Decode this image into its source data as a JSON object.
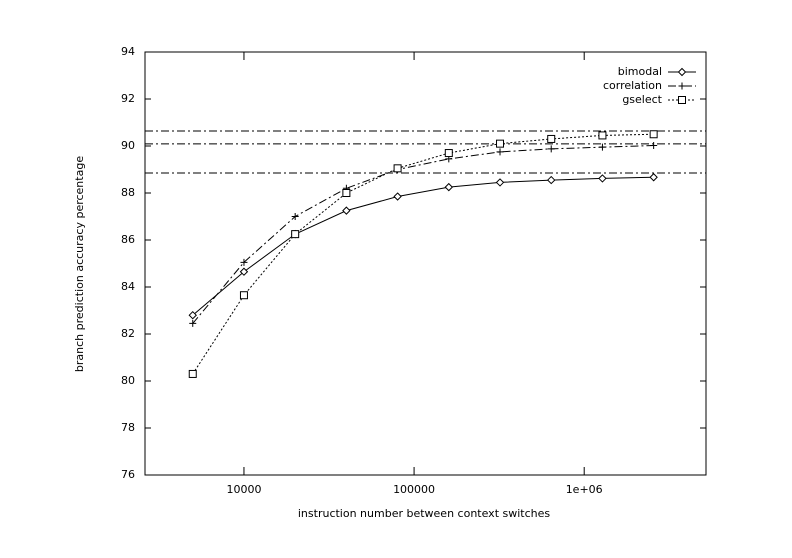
{
  "chart_data": {
    "type": "line",
    "xscale": "log",
    "x_label": "instruction number between context switches",
    "y_label": "branch prediction accuracy percentage",
    "x": [
      5000,
      10000,
      20000,
      40000,
      80000,
      160000,
      320000,
      640000,
      1280000,
      2560000
    ],
    "series": [
      {
        "name": "bimodal",
        "color": "#000000",
        "dash": "none",
        "marker": "diamond",
        "values": [
          82.8,
          84.65,
          86.25,
          87.25,
          87.85,
          88.25,
          88.45,
          88.55,
          88.62,
          88.67
        ]
      },
      {
        "name": "correlation",
        "color": "#000000",
        "dash": "8,3,2,3",
        "marker": "plus",
        "values": [
          82.45,
          85.05,
          87.0,
          88.2,
          89.0,
          89.45,
          89.75,
          89.88,
          89.95,
          90.02
        ]
      },
      {
        "name": "gselect",
        "color": "#000000",
        "dash": "2,2",
        "marker": "square",
        "values": [
          80.3,
          83.65,
          86.25,
          88.0,
          89.05,
          89.7,
          90.1,
          90.3,
          90.45,
          90.5
        ]
      }
    ],
    "reference_lines": [
      90.64,
      90.09,
      88.85
    ],
    "xlim": [
      2620,
      5200000
    ],
    "xticks": [
      10000,
      100000,
      {
        "value": 1000000,
        "label": "1e+06"
      }
    ],
    "ylim": [
      76,
      94
    ],
    "yticks": [
      76,
      78,
      80,
      82,
      84,
      86,
      88,
      90,
      92,
      94
    ],
    "legend": "top-right"
  }
}
